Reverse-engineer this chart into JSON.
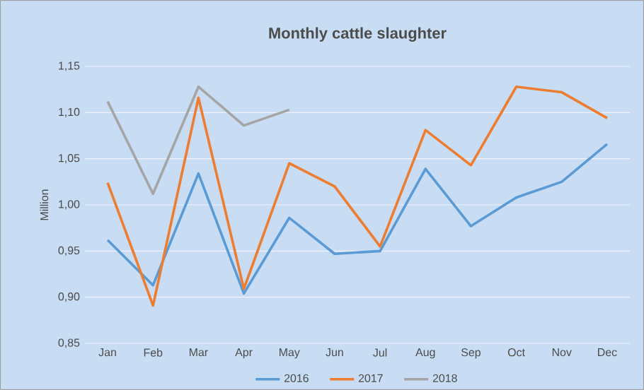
{
  "chart_data": {
    "type": "line",
    "title": "Monthly cattle slaughter",
    "ylabel": "Million",
    "categories": [
      "Jan",
      "Feb",
      "Mar",
      "Apr",
      "May",
      "Jun",
      "Jul",
      "Aug",
      "Sep",
      "Oct",
      "Nov",
      "Dec"
    ],
    "series": [
      {
        "name": "2016",
        "color": "#5b9bd5",
        "values": [
          0.962,
          0.913,
          1.034,
          0.904,
          0.986,
          0.947,
          0.95,
          1.039,
          0.977,
          1.008,
          1.025,
          1.066
        ]
      },
      {
        "name": "2017",
        "color": "#ed7d31",
        "values": [
          1.024,
          0.891,
          1.116,
          0.909,
          1.045,
          1.02,
          0.955,
          1.081,
          1.043,
          1.128,
          1.122,
          1.094
        ]
      },
      {
        "name": "2018",
        "color": "#a5a5a5",
        "values": [
          1.112,
          1.012,
          1.128,
          1.086,
          1.103,
          null,
          null,
          null,
          null,
          null,
          null,
          null
        ]
      }
    ],
    "ylim": [
      0.85,
      1.15
    ],
    "yticks": [
      {
        "value": 0.85,
        "label": "0,85"
      },
      {
        "value": 0.9,
        "label": "0,90"
      },
      {
        "value": 0.95,
        "label": "0,95"
      },
      {
        "value": 1.0,
        "label": "1,00"
      },
      {
        "value": 1.05,
        "label": "1,05"
      },
      {
        "value": 1.1,
        "label": "1,10"
      },
      {
        "value": 1.15,
        "label": "1,15"
      }
    ],
    "grid": "y",
    "legend": "bottom",
    "marker": "none",
    "line_style": "solid"
  }
}
